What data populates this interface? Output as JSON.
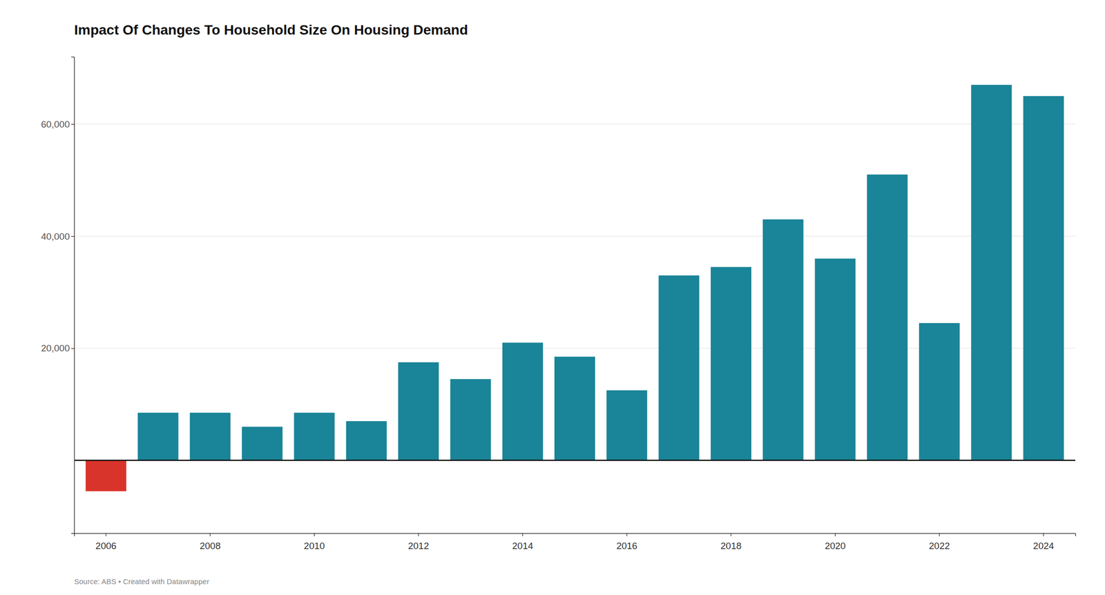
{
  "chart_data": {
    "type": "bar",
    "title": "Impact Of Changes To Household Size On Housing Demand",
    "source": "Source: ABS • Created with Datawrapper",
    "categories": [
      2006,
      null,
      2008,
      null,
      2010,
      null,
      2012,
      null,
      2014,
      null,
      2016,
      null,
      2018,
      null,
      2020,
      null,
      2022,
      null,
      2024
    ],
    "values": [
      -5500,
      8500,
      8500,
      6000,
      8500,
      7000,
      17500,
      14500,
      21000,
      18500,
      12500,
      33000,
      34500,
      43000,
      36000,
      51000,
      24500,
      67000,
      65000
    ],
    "colors": [
      "#d9342b",
      "#1a8498",
      "#1a8498",
      "#1a8498",
      "#1a8498",
      "#1a8498",
      "#1a8498",
      "#1a8498",
      "#1a8498",
      "#1a8498",
      "#1a8498",
      "#1a8498",
      "#1a8498",
      "#1a8498",
      "#1a8498",
      "#1a8498",
      "#1a8498",
      "#1a8498",
      "#1a8498"
    ],
    "ylim": [
      -13000,
      72000
    ],
    "yticks": [
      {
        "value": 20000,
        "label": "20,000"
      },
      {
        "value": 40000,
        "label": "40,000"
      },
      {
        "value": 60000,
        "label": "60,000"
      }
    ],
    "grid": true
  }
}
